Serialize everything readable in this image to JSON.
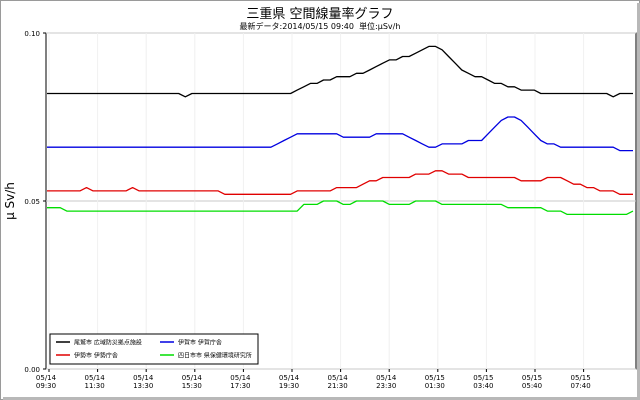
{
  "page": {
    "title": "三重県 空間線量率グラフ",
    "subtitle_prefix": "最新データ:",
    "latest_datetime": "2014/05/15 09:40",
    "unit_label": "単位:",
    "unit": "μSv/h"
  },
  "chart_data": {
    "type": "line",
    "title": "三重県 空間線量率グラフ",
    "subtitle": "最新データ:2014/05/15 09:40  単位:μSv/h",
    "ylabel": "μ Sv/h",
    "xlabel": "",
    "ylim": [
      0.0,
      0.1
    ],
    "yticks": [
      "0.00",
      "0.05",
      "0.10"
    ],
    "grid": true,
    "legend": "bottom-left",
    "x_tick_labels": [
      [
        "05/14",
        "09:30"
      ],
      [
        "05/14",
        "11:30"
      ],
      [
        "05/14",
        "13:30"
      ],
      [
        "05/14",
        "15:30"
      ],
      [
        "05/14",
        "17:30"
      ],
      [
        "05/14",
        "19:30"
      ],
      [
        "05/14",
        "21:30"
      ],
      [
        "05/14",
        "23:30"
      ],
      [
        "05/15",
        "01:30"
      ],
      [
        "05/15",
        "03:40"
      ],
      [
        "05/15",
        "05:40"
      ],
      [
        "05/15",
        "07:40"
      ]
    ],
    "series": [
      {
        "name": "尾鷲市 広域防災拠点施設",
        "color": "#000000",
        "values": [
          0.082,
          0.082,
          0.082,
          0.082,
          0.082,
          0.082,
          0.082,
          0.082,
          0.082,
          0.082,
          0.082,
          0.082,
          0.082,
          0.082,
          0.082,
          0.082,
          0.082,
          0.082,
          0.082,
          0.082,
          0.082,
          0.081,
          0.082,
          0.082,
          0.082,
          0.082,
          0.082,
          0.082,
          0.082,
          0.082,
          0.082,
          0.082,
          0.082,
          0.082,
          0.082,
          0.082,
          0.082,
          0.082,
          0.083,
          0.084,
          0.085,
          0.085,
          0.086,
          0.086,
          0.087,
          0.087,
          0.087,
          0.088,
          0.088,
          0.089,
          0.09,
          0.091,
          0.092,
          0.092,
          0.093,
          0.093,
          0.094,
          0.095,
          0.096,
          0.096,
          0.095,
          0.093,
          0.091,
          0.089,
          0.088,
          0.087,
          0.087,
          0.086,
          0.085,
          0.085,
          0.084,
          0.084,
          0.083,
          0.083,
          0.083,
          0.082,
          0.082,
          0.082,
          0.082,
          0.082,
          0.082,
          0.082,
          0.082,
          0.082,
          0.082,
          0.082,
          0.081,
          0.082,
          0.082,
          0.082
        ]
      },
      {
        "name": "伊勢市 伊勢庁舎",
        "color": "#e00000",
        "values": [
          0.053,
          0.053,
          0.053,
          0.053,
          0.053,
          0.053,
          0.054,
          0.053,
          0.053,
          0.053,
          0.053,
          0.053,
          0.053,
          0.054,
          0.053,
          0.053,
          0.053,
          0.053,
          0.053,
          0.053,
          0.053,
          0.053,
          0.053,
          0.053,
          0.053,
          0.053,
          0.053,
          0.052,
          0.052,
          0.052,
          0.052,
          0.052,
          0.052,
          0.052,
          0.052,
          0.052,
          0.052,
          0.052,
          0.053,
          0.053,
          0.053,
          0.053,
          0.053,
          0.053,
          0.054,
          0.054,
          0.054,
          0.054,
          0.055,
          0.056,
          0.056,
          0.057,
          0.057,
          0.057,
          0.057,
          0.057,
          0.058,
          0.058,
          0.058,
          0.059,
          0.059,
          0.058,
          0.058,
          0.058,
          0.057,
          0.057,
          0.057,
          0.057,
          0.057,
          0.057,
          0.057,
          0.057,
          0.056,
          0.056,
          0.056,
          0.056,
          0.057,
          0.057,
          0.057,
          0.056,
          0.055,
          0.055,
          0.054,
          0.054,
          0.053,
          0.053,
          0.053,
          0.052,
          0.052,
          0.052
        ]
      },
      {
        "name": "伊賀市 伊賀庁舎",
        "color": "#0000e0",
        "values": [
          0.066,
          0.066,
          0.066,
          0.066,
          0.066,
          0.066,
          0.066,
          0.066,
          0.066,
          0.066,
          0.066,
          0.066,
          0.066,
          0.066,
          0.066,
          0.066,
          0.066,
          0.066,
          0.066,
          0.066,
          0.066,
          0.066,
          0.066,
          0.066,
          0.066,
          0.066,
          0.066,
          0.066,
          0.066,
          0.066,
          0.066,
          0.066,
          0.066,
          0.066,
          0.066,
          0.067,
          0.068,
          0.069,
          0.07,
          0.07,
          0.07,
          0.07,
          0.07,
          0.07,
          0.07,
          0.069,
          0.069,
          0.069,
          0.069,
          0.069,
          0.07,
          0.07,
          0.07,
          0.07,
          0.07,
          0.069,
          0.068,
          0.067,
          0.066,
          0.066,
          0.067,
          0.067,
          0.067,
          0.067,
          0.068,
          0.068,
          0.068,
          0.07,
          0.072,
          0.074,
          0.075,
          0.075,
          0.074,
          0.072,
          0.07,
          0.068,
          0.067,
          0.067,
          0.066,
          0.066,
          0.066,
          0.066,
          0.066,
          0.066,
          0.066,
          0.066,
          0.066,
          0.065,
          0.065,
          0.065
        ]
      },
      {
        "name": "四日市市 県保健環境研究所",
        "color": "#00dd00",
        "values": [
          0.048,
          0.048,
          0.048,
          0.047,
          0.047,
          0.047,
          0.047,
          0.047,
          0.047,
          0.047,
          0.047,
          0.047,
          0.047,
          0.047,
          0.047,
          0.047,
          0.047,
          0.047,
          0.047,
          0.047,
          0.047,
          0.047,
          0.047,
          0.047,
          0.047,
          0.047,
          0.047,
          0.047,
          0.047,
          0.047,
          0.047,
          0.047,
          0.047,
          0.047,
          0.047,
          0.047,
          0.047,
          0.047,
          0.047,
          0.049,
          0.049,
          0.049,
          0.05,
          0.05,
          0.05,
          0.049,
          0.049,
          0.05,
          0.05,
          0.05,
          0.05,
          0.05,
          0.049,
          0.049,
          0.049,
          0.049,
          0.05,
          0.05,
          0.05,
          0.05,
          0.049,
          0.049,
          0.049,
          0.049,
          0.049,
          0.049,
          0.049,
          0.049,
          0.049,
          0.049,
          0.048,
          0.048,
          0.048,
          0.048,
          0.048,
          0.048,
          0.047,
          0.047,
          0.047,
          0.046,
          0.046,
          0.046,
          0.046,
          0.046,
          0.046,
          0.046,
          0.046,
          0.046,
          0.046,
          0.047
        ]
      }
    ]
  }
}
